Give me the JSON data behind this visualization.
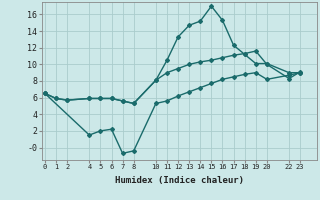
{
  "xlabel": "Humidex (Indice chaleur)",
  "background_color": "#cce8e8",
  "grid_color": "#aacccc",
  "line_color": "#1a6b6b",
  "ylim": [
    -1.5,
    17.5
  ],
  "yticks": [
    0,
    2,
    4,
    6,
    8,
    10,
    12,
    14,
    16
  ],
  "ytick_labels": [
    "-0",
    "2",
    "4",
    "6",
    "8",
    "10",
    "12",
    "14",
    "16"
  ],
  "xticks": [
    0,
    1,
    2,
    4,
    5,
    6,
    7,
    8,
    10,
    11,
    12,
    13,
    14,
    15,
    16,
    17,
    18,
    19,
    20,
    22,
    23
  ],
  "xlim": [
    -0.3,
    24.5
  ],
  "line1_x": [
    0,
    1,
    2,
    4,
    5,
    6,
    7,
    8,
    10,
    11,
    12,
    13,
    14,
    15,
    16,
    17,
    18,
    19,
    20,
    22,
    23
  ],
  "line1_y": [
    6.5,
    5.9,
    5.7,
    5.9,
    5.9,
    5.9,
    5.6,
    5.3,
    8.1,
    10.5,
    13.3,
    14.7,
    15.2,
    17.0,
    15.3,
    12.3,
    11.2,
    10.1,
    10.1,
    9.0,
    9.0
  ],
  "line2_x": [
    0,
    1,
    2,
    4,
    5,
    6,
    7,
    8,
    10,
    11,
    12,
    13,
    14,
    15,
    16,
    17,
    18,
    19,
    20,
    22,
    23
  ],
  "line2_y": [
    6.5,
    5.9,
    5.7,
    5.9,
    5.9,
    5.9,
    5.6,
    5.3,
    8.1,
    9.0,
    9.5,
    10.0,
    10.3,
    10.5,
    10.8,
    11.1,
    11.3,
    11.6,
    10.0,
    8.3,
    9.1
  ],
  "line3_x": [
    0,
    4,
    5,
    6,
    7,
    8,
    10,
    11,
    12,
    13,
    14,
    15,
    16,
    17,
    18,
    19,
    20,
    22,
    23
  ],
  "line3_y": [
    6.5,
    1.5,
    2.0,
    2.2,
    -0.7,
    -0.4,
    5.3,
    5.6,
    6.2,
    6.7,
    7.2,
    7.7,
    8.2,
    8.5,
    8.8,
    9.0,
    8.2,
    8.7,
    9.0
  ],
  "marker": "D",
  "markersize": 2.0,
  "linewidth": 1.0
}
